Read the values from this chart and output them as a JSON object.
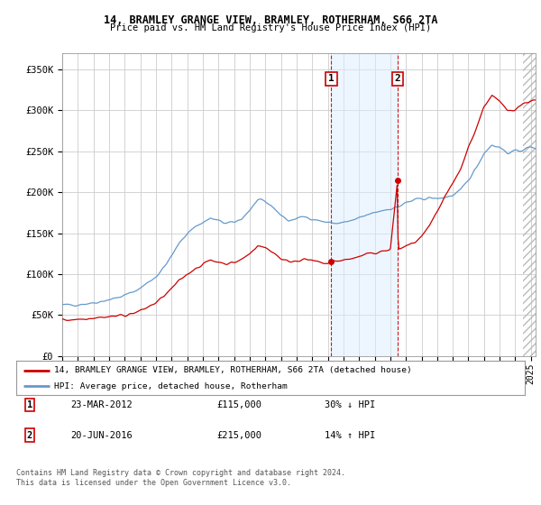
{
  "title1": "14, BRAMLEY GRANGE VIEW, BRAMLEY, ROTHERHAM, S66 2TA",
  "title2": "Price paid vs. HM Land Registry's House Price Index (HPI)",
  "ylabel_ticks": [
    "£0",
    "£50K",
    "£100K",
    "£150K",
    "£200K",
    "£250K",
    "£300K",
    "£350K"
  ],
  "ytick_vals": [
    0,
    50000,
    100000,
    150000,
    200000,
    250000,
    300000,
    350000
  ],
  "ylim": [
    0,
    370000
  ],
  "xlim_start": 1995.0,
  "xlim_end": 2025.3,
  "transaction1": {
    "date_x": 2012.22,
    "price": 115000,
    "label": "1",
    "date_str": "23-MAR-2012"
  },
  "transaction2": {
    "date_x": 2016.47,
    "price": 215000,
    "label": "2",
    "date_str": "20-JUN-2016"
  },
  "legend_line1": "14, BRAMLEY GRANGE VIEW, BRAMLEY, ROTHERHAM, S66 2TA (detached house)",
  "legend_line2": "HPI: Average price, detached house, Rotherham",
  "footnote1": "Contains HM Land Registry data © Crown copyright and database right 2024.",
  "footnote2": "This data is licensed under the Open Government Licence v3.0.",
  "table_row1": [
    "1",
    "23-MAR-2012",
    "£115,000",
    "30% ↓ HPI"
  ],
  "table_row2": [
    "2",
    "20-JUN-2016",
    "£215,000",
    "14% ↑ HPI"
  ],
  "red_color": "#cc0000",
  "blue_color": "#6699cc",
  "bg_color": "#ffffff",
  "grid_color": "#cccccc",
  "shade_color": "#ddeeff",
  "hpi_anchors": [
    [
      1995.0,
      62000
    ],
    [
      1995.5,
      62500
    ],
    [
      1996.0,
      63000
    ],
    [
      1996.5,
      64000
    ],
    [
      1997.0,
      65000
    ],
    [
      1997.5,
      67000
    ],
    [
      1998.0,
      69000
    ],
    [
      1998.5,
      71000
    ],
    [
      1999.0,
      74000
    ],
    [
      1999.5,
      78000
    ],
    [
      2000.0,
      83000
    ],
    [
      2000.5,
      90000
    ],
    [
      2001.0,
      97000
    ],
    [
      2001.5,
      108000
    ],
    [
      2002.0,
      122000
    ],
    [
      2002.5,
      138000
    ],
    [
      2003.0,
      150000
    ],
    [
      2003.5,
      158000
    ],
    [
      2004.0,
      163000
    ],
    [
      2004.5,
      168000
    ],
    [
      2005.0,
      165000
    ],
    [
      2005.5,
      162000
    ],
    [
      2006.0,
      163000
    ],
    [
      2006.5,
      168000
    ],
    [
      2007.0,
      178000
    ],
    [
      2007.5,
      190000
    ],
    [
      2008.0,
      188000
    ],
    [
      2008.5,
      182000
    ],
    [
      2009.0,
      172000
    ],
    [
      2009.5,
      165000
    ],
    [
      2010.0,
      168000
    ],
    [
      2010.5,
      170000
    ],
    [
      2011.0,
      168000
    ],
    [
      2011.5,
      165000
    ],
    [
      2012.0,
      163000
    ],
    [
      2012.5,
      162000
    ],
    [
      2013.0,
      163000
    ],
    [
      2013.5,
      165000
    ],
    [
      2014.0,
      168000
    ],
    [
      2014.5,
      172000
    ],
    [
      2015.0,
      175000
    ],
    [
      2015.5,
      178000
    ],
    [
      2016.0,
      180000
    ],
    [
      2016.5,
      182000
    ],
    [
      2017.0,
      187000
    ],
    [
      2017.5,
      190000
    ],
    [
      2018.0,
      192000
    ],
    [
      2018.5,
      193000
    ],
    [
      2019.0,
      192000
    ],
    [
      2019.5,
      194000
    ],
    [
      2020.0,
      196000
    ],
    [
      2020.5,
      202000
    ],
    [
      2021.0,
      215000
    ],
    [
      2021.5,
      230000
    ],
    [
      2022.0,
      248000
    ],
    [
      2022.5,
      258000
    ],
    [
      2023.0,
      255000
    ],
    [
      2023.5,
      248000
    ],
    [
      2024.0,
      250000
    ],
    [
      2024.5,
      252000
    ],
    [
      2025.0,
      255000
    ]
  ],
  "prop_anchors": [
    [
      1995.0,
      44000
    ],
    [
      1995.5,
      44500
    ],
    [
      1996.0,
      45000
    ],
    [
      1996.5,
      46000
    ],
    [
      1997.0,
      47000
    ],
    [
      1997.5,
      47500
    ],
    [
      1998.0,
      48000
    ],
    [
      1998.5,
      49000
    ],
    [
      1999.0,
      50000
    ],
    [
      1999.5,
      52000
    ],
    [
      2000.0,
      55000
    ],
    [
      2000.5,
      60000
    ],
    [
      2001.0,
      65000
    ],
    [
      2001.5,
      73000
    ],
    [
      2002.0,
      82000
    ],
    [
      2002.5,
      92000
    ],
    [
      2003.0,
      100000
    ],
    [
      2003.5,
      107000
    ],
    [
      2004.0,
      112000
    ],
    [
      2004.5,
      117000
    ],
    [
      2005.0,
      115000
    ],
    [
      2005.5,
      113000
    ],
    [
      2006.0,
      114000
    ],
    [
      2006.5,
      118000
    ],
    [
      2007.0,
      125000
    ],
    [
      2007.5,
      135000
    ],
    [
      2008.0,
      132000
    ],
    [
      2008.5,
      127000
    ],
    [
      2009.0,
      119000
    ],
    [
      2009.5,
      115000
    ],
    [
      2010.0,
      117000
    ],
    [
      2010.5,
      118000
    ],
    [
      2011.0,
      116000
    ],
    [
      2011.5,
      114000
    ],
    [
      2012.0,
      113000
    ],
    [
      2012.22,
      115000
    ],
    [
      2012.5,
      116000
    ],
    [
      2013.0,
      117000
    ],
    [
      2013.5,
      119000
    ],
    [
      2014.0,
      121000
    ],
    [
      2014.5,
      124000
    ],
    [
      2015.0,
      126000
    ],
    [
      2015.5,
      128000
    ],
    [
      2016.0,
      129000
    ],
    [
      2016.47,
      215000
    ],
    [
      2016.5,
      130000
    ],
    [
      2017.0,
      134000
    ],
    [
      2017.5,
      138000
    ],
    [
      2018.0,
      145000
    ],
    [
      2018.5,
      158000
    ],
    [
      2019.0,
      175000
    ],
    [
      2019.5,
      195000
    ],
    [
      2020.0,
      210000
    ],
    [
      2020.5,
      228000
    ],
    [
      2021.0,
      255000
    ],
    [
      2021.5,
      278000
    ],
    [
      2022.0,
      305000
    ],
    [
      2022.5,
      318000
    ],
    [
      2023.0,
      310000
    ],
    [
      2023.5,
      300000
    ],
    [
      2024.0,
      302000
    ],
    [
      2024.5,
      308000
    ],
    [
      2025.0,
      312000
    ]
  ]
}
